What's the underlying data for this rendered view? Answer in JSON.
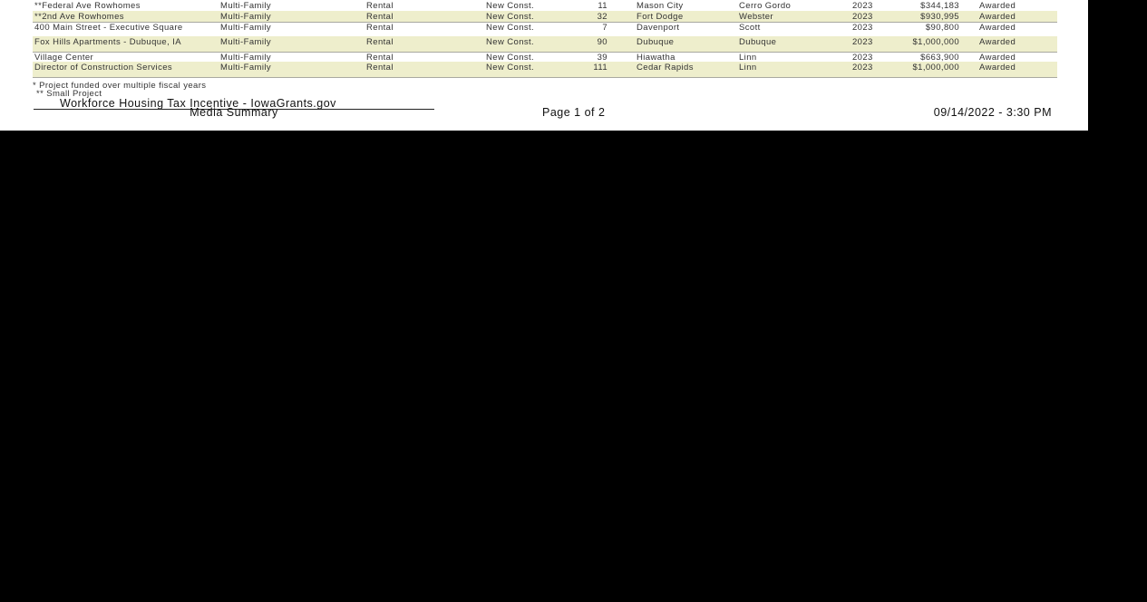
{
  "rows": [
    {
      "name": "**Federal Ave Rowhomes",
      "type": "Multi-Family",
      "tenure": "Rental",
      "construction": "New Const.",
      "units": "11",
      "city": "Mason City",
      "county": "Cerro Gordo",
      "year": "2023",
      "amount": "$344,183",
      "status": "Awarded"
    },
    {
      "name": "**2nd Ave Rowhomes",
      "type": "Multi-Family",
      "tenure": "Rental",
      "construction": "New Const.",
      "units": "32",
      "city": "Fort Dodge",
      "county": "Webster",
      "year": "2023",
      "amount": "$930,995",
      "status": "Awarded"
    },
    {
      "name": "400 Main Street - Executive Square",
      "type": "Multi-Family",
      "tenure": "Rental",
      "construction": "New Const.",
      "units": "7",
      "city": "Davenport",
      "county": "Scott",
      "year": "2023",
      "amount": "$90,800",
      "status": "Awarded"
    },
    {
      "name": "Fox Hills Apartments - Dubuque, IA",
      "type": "Multi-Family",
      "tenure": "Rental",
      "construction": "New Const.",
      "units": "90",
      "city": "Dubuque",
      "county": "Dubuque",
      "year": "2023",
      "amount": "$1,000,000",
      "status": "Awarded"
    },
    {
      "name": "Village Center",
      "type": "Multi-Family",
      "tenure": "Rental",
      "construction": "New Const.",
      "units": "39",
      "city": "Hiawatha",
      "county": "Linn",
      "year": "2023",
      "amount": "$663,900",
      "status": "Awarded"
    },
    {
      "name": "Director of Construction Services",
      "type": "Multi-Family",
      "tenure": "Rental",
      "construction": "New Const.",
      "units": "111",
      "city": "Cedar Rapids",
      "county": "Linn",
      "year": "2023",
      "amount": "$1,000,000",
      "status": "Awarded"
    }
  ],
  "footnotes": [
    "* Project funded over multiple fiscal years",
    "** Small Project"
  ],
  "footer": {
    "title": "Workforce Housing Tax Incentive - IowaGrants.gov",
    "subtitle": "Media Summary",
    "page": "Page 1 of 2",
    "datetime": "09/14/2022 -  3:30 PM"
  }
}
